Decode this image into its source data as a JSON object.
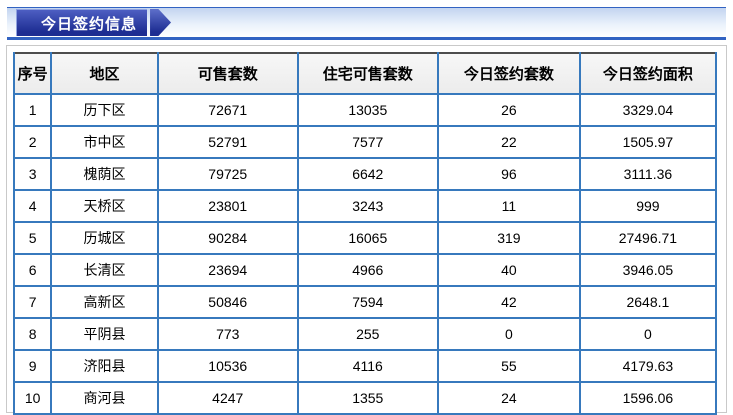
{
  "header": {
    "title": "今日签约信息"
  },
  "table": {
    "columns": [
      "序号",
      "地区",
      "可售套数",
      "住宅可售套数",
      "今日签约套数",
      "今日签约面积"
    ],
    "col_widths_percent": [
      5.3,
      15.2,
      19.9,
      20.0,
      20.2,
      19.4
    ],
    "rows": [
      [
        "1",
        "历下区",
        "72671",
        "13035",
        "26",
        "3329.04"
      ],
      [
        "2",
        "市中区",
        "52791",
        "7577",
        "22",
        "1505.97"
      ],
      [
        "3",
        "槐荫区",
        "79725",
        "6642",
        "96",
        "3111.36"
      ],
      [
        "4",
        "天桥区",
        "23801",
        "3243",
        "11",
        "999"
      ],
      [
        "5",
        "历城区",
        "90284",
        "16065",
        "319",
        "27496.71"
      ],
      [
        "6",
        "长清区",
        "23694",
        "4966",
        "40",
        "3946.05"
      ],
      [
        "7",
        "高新区",
        "50846",
        "7594",
        "42",
        "2648.1"
      ],
      [
        "8",
        "平阴县",
        "773",
        "255",
        "0",
        "0"
      ],
      [
        "9",
        "济阳县",
        "10536",
        "4116",
        "55",
        "4179.63"
      ],
      [
        "10",
        "商河县",
        "4247",
        "1355",
        "24",
        "1596.06"
      ]
    ]
  },
  "colors": {
    "tab_top": "#4d5ec2",
    "tab_bottom": "#1d2d92",
    "bar_line": "#3263c2",
    "cell_border": "#3779bd",
    "table_top_border": "#4d4d4d",
    "panel_border": "#c9c9c9",
    "header_bg": "#ececec"
  }
}
